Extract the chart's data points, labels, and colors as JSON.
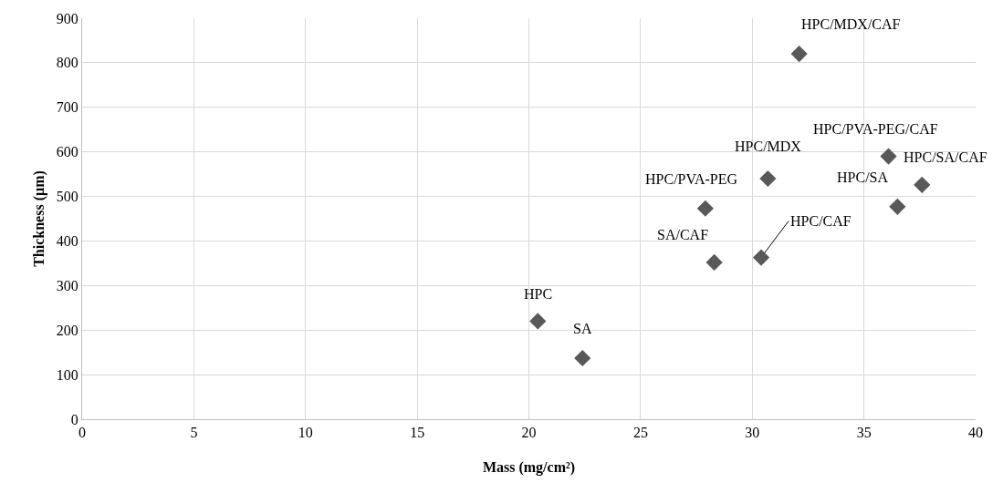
{
  "chart_data": {
    "type": "scatter",
    "xlabel": "Mass (mg/cm²)",
    "ylabel": "Thickness (µm)",
    "x": [
      20.4,
      22.4,
      28.3,
      27.9,
      30.4,
      30.7,
      32.1,
      36.1,
      36.5,
      37.6
    ],
    "series": [
      {
        "color": "#595959",
        "values": [
          220,
          137,
          352,
          473,
          363,
          540,
          820,
          590,
          477,
          526
        ]
      }
    ],
    "annotations": [
      {
        "text": "HPC",
        "x": 20.4,
        "y": 220
      },
      {
        "text": "SA",
        "x": 22.4,
        "y": 137
      },
      {
        "text": "SA/CAF",
        "x": 28.3,
        "y": 352
      },
      {
        "text": "HPC/PVA-PEG",
        "x": 27.9,
        "y": 473
      },
      {
        "text": "HPC/CAF",
        "x": 30.4,
        "y": 363
      },
      {
        "text": "HPC/MDX",
        "x": 30.7,
        "y": 540
      },
      {
        "text": "HPC/MDX/CAF",
        "x": 32.1,
        "y": 820
      },
      {
        "text": "HPC/PVA-PEG/CAF",
        "x": 36.1,
        "y": 590
      },
      {
        "text": "HPC/SA",
        "x": 36.5,
        "y": 477
      },
      {
        "text": "HPC/SA/CAF",
        "x": 37.6,
        "y": 526
      }
    ],
    "xlim": [
      0,
      40
    ],
    "xticks": [
      0,
      5,
      10,
      15,
      20,
      25,
      30,
      35,
      40
    ],
    "ylim": [
      0,
      900
    ],
    "yticks": [
      0,
      100,
      200,
      300,
      400,
      500,
      600,
      700,
      800,
      900
    ],
    "grid": true,
    "marker": "diamond"
  }
}
